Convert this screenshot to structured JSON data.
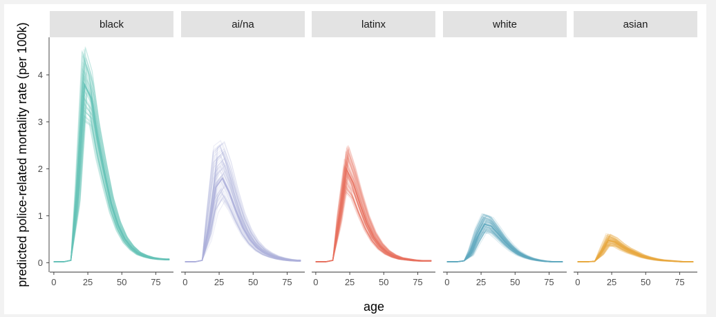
{
  "chart_data": {
    "type": "line",
    "xlabel": "age",
    "ylabel": "predicted police-related mortality rate (per 100k)",
    "xlim": [
      -3,
      88
    ],
    "ylim": [
      -0.2,
      4.8
    ],
    "x_ticks": [
      0,
      25,
      50,
      75
    ],
    "x_tick_labels": [
      "0",
      "25",
      "50",
      "75"
    ],
    "y_ticks": [
      0,
      1,
      2,
      3,
      4
    ],
    "y_tick_labels": [
      "0",
      "1",
      "2",
      "3",
      "4"
    ],
    "grid": false,
    "legend": "none",
    "x": [
      0,
      2.5,
      7.5,
      12.5,
      17.5,
      22.5,
      27.5,
      32.5,
      37.5,
      42.5,
      47.5,
      52.5,
      57.5,
      62.5,
      67.5,
      72.5,
      77.5,
      82.5,
      85
    ],
    "facets": [
      {
        "name": "black",
        "color": "#66c2b8",
        "values": [
          0.02,
          0.02,
          0.02,
          0.05,
          1.4,
          3.8,
          3.5,
          2.6,
          1.9,
          1.25,
          0.8,
          0.5,
          0.32,
          0.2,
          0.14,
          0.1,
          0.08,
          0.07,
          0.07
        ],
        "peak_range": [
          3.0,
          4.6
        ]
      },
      {
        "name": "ai/na",
        "color": "#aeb0dc",
        "values": [
          0.02,
          0.02,
          0.02,
          0.05,
          0.7,
          1.6,
          1.8,
          1.5,
          1.1,
          0.75,
          0.5,
          0.33,
          0.22,
          0.15,
          0.1,
          0.07,
          0.05,
          0.04,
          0.04
        ],
        "peak_range": [
          1.2,
          2.8
        ]
      },
      {
        "name": "latinx",
        "color": "#e8715f",
        "values": [
          0.02,
          0.02,
          0.02,
          0.05,
          0.95,
          2.0,
          1.7,
          1.25,
          0.85,
          0.55,
          0.35,
          0.22,
          0.14,
          0.09,
          0.07,
          0.05,
          0.04,
          0.04,
          0.04
        ],
        "peak_range": [
          1.5,
          2.5
        ]
      },
      {
        "name": "white",
        "color": "#5fa8bf",
        "values": [
          0.02,
          0.02,
          0.02,
          0.04,
          0.2,
          0.55,
          0.82,
          0.78,
          0.62,
          0.45,
          0.31,
          0.2,
          0.13,
          0.08,
          0.05,
          0.03,
          0.02,
          0.02,
          0.02
        ],
        "peak_range": [
          0.6,
          1.1
        ]
      },
      {
        "name": "asian",
        "color": "#e9a93f",
        "values": [
          0.02,
          0.02,
          0.02,
          0.03,
          0.22,
          0.48,
          0.44,
          0.34,
          0.26,
          0.2,
          0.14,
          0.1,
          0.07,
          0.05,
          0.04,
          0.03,
          0.02,
          0.02,
          0.02
        ],
        "peak_range": [
          0.35,
          0.62
        ]
      }
    ]
  }
}
